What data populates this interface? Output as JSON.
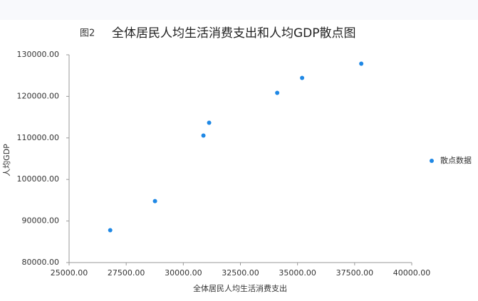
{
  "chart_data": {
    "type": "scatter",
    "figure_label": "图2",
    "title": "全体居民人均生活消费支出和人均GDP散点图",
    "x_label": "全体居民人均生活消费支出",
    "y_label": "人均GDP",
    "series": [
      {
        "name": "散点数据",
        "color": "#1f88e5",
        "x": [
          26800,
          28760,
          30880,
          31130,
          34110,
          35200,
          37790
        ],
        "values": [
          87800,
          94800,
          110560,
          113650,
          120840,
          124440,
          127860
        ]
      }
    ],
    "xlim": [
      25000,
      40000
    ],
    "xticks": [
      {
        "value": 25000,
        "label": "25000.00"
      },
      {
        "value": 27500,
        "label": "27500.00"
      },
      {
        "value": 30000,
        "label": "30000.00"
      },
      {
        "value": 32500,
        "label": "32500.00"
      },
      {
        "value": 35000,
        "label": "35000.00"
      },
      {
        "value": 37500,
        "label": "37500.00"
      },
      {
        "value": 40000,
        "label": "40000.00"
      }
    ],
    "ylim": [
      80000,
      130000
    ],
    "yticks": [
      {
        "value": 80000,
        "label": "80000.00"
      },
      {
        "value": 90000,
        "label": "90000.00"
      },
      {
        "value": 100000,
        "label": "100000.00"
      },
      {
        "value": 110000,
        "label": "110000.00"
      },
      {
        "value": 120000,
        "label": "120000.00"
      },
      {
        "value": 130000,
        "label": "130000.00"
      }
    ],
    "grid": false,
    "legend": "right"
  }
}
